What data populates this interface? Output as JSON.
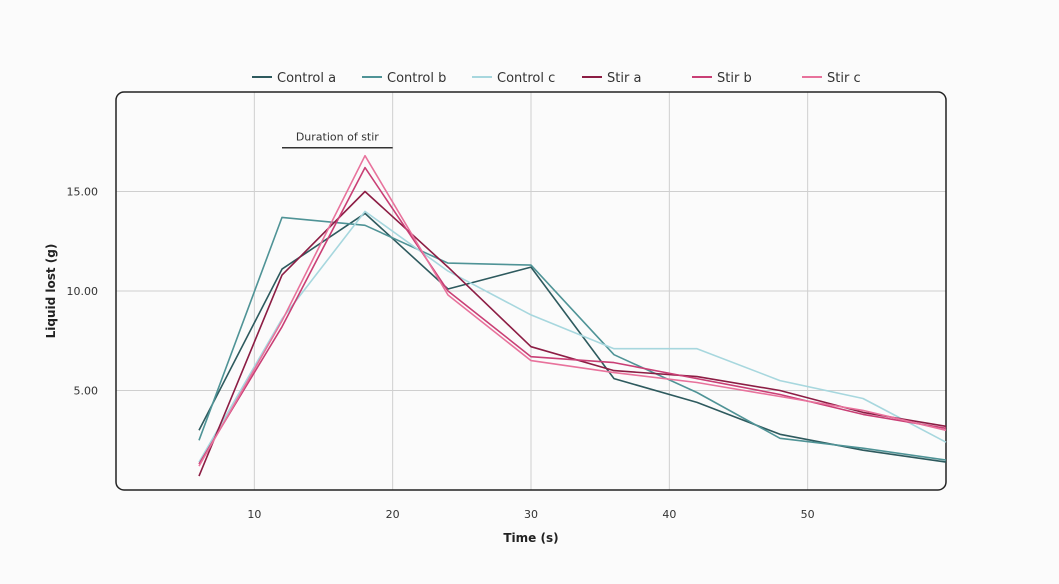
{
  "chart_data": {
    "type": "line",
    "xlabel": "Time (s)",
    "ylabel": "Liquid lost (g)",
    "xlim": [
      0,
      60
    ],
    "ylim": [
      0,
      20
    ],
    "xticks": [
      10,
      20,
      30,
      40,
      50
    ],
    "yticks": [
      5,
      10,
      15
    ],
    "xtick_labels": [
      "10",
      "20",
      "30",
      "40",
      "50"
    ],
    "ytick_labels": [
      "5.00",
      "10.00",
      "15.00"
    ],
    "grid": true,
    "legend_position": "top",
    "annotation": {
      "label": "Duration of stir",
      "x_start": 12,
      "x_end": 20,
      "y": 17.2
    },
    "series": [
      {
        "name": "Control a",
        "color": "#2e5a5e",
        "x": [
          6,
          12,
          18,
          24,
          30,
          36,
          42,
          48,
          54,
          60
        ],
        "y": [
          3.0,
          11.1,
          13.9,
          10.1,
          11.2,
          5.6,
          4.4,
          2.8,
          2.0,
          1.4
        ]
      },
      {
        "name": "Control b",
        "color": "#4f9396",
        "x": [
          6,
          12,
          18,
          24,
          30,
          36,
          42,
          48,
          54,
          60
        ],
        "y": [
          2.5,
          13.7,
          13.3,
          11.4,
          11.3,
          6.8,
          4.9,
          2.6,
          2.1,
          1.5
        ]
      },
      {
        "name": "Control c",
        "color": "#a7d7de",
        "x": [
          6,
          12,
          18,
          24,
          30,
          36,
          42,
          48,
          54,
          60
        ],
        "y": [
          1.4,
          8.6,
          14.0,
          11.0,
          8.8,
          7.1,
          7.1,
          5.5,
          4.6,
          2.4
        ]
      },
      {
        "name": "Stir a",
        "color": "#8c1d44",
        "x": [
          6,
          12,
          18,
          24,
          30,
          36,
          42,
          48,
          54,
          60
        ],
        "y": [
          0.7,
          10.8,
          15.0,
          11.2,
          7.2,
          6.0,
          5.7,
          5.0,
          3.9,
          3.2
        ]
      },
      {
        "name": "Stir b",
        "color": "#c93f75",
        "x": [
          6,
          12,
          18,
          24,
          30,
          36,
          42,
          48,
          54,
          60
        ],
        "y": [
          1.3,
          8.2,
          16.2,
          10.0,
          6.7,
          6.4,
          5.6,
          4.8,
          3.8,
          3.1
        ]
      },
      {
        "name": "Stir c",
        "color": "#e8729c",
        "x": [
          6,
          12,
          18,
          24,
          30,
          36,
          42,
          48,
          54,
          60
        ],
        "y": [
          1.2,
          8.5,
          16.8,
          9.8,
          6.5,
          5.9,
          5.4,
          4.7,
          4.0,
          3.0
        ]
      }
    ]
  }
}
